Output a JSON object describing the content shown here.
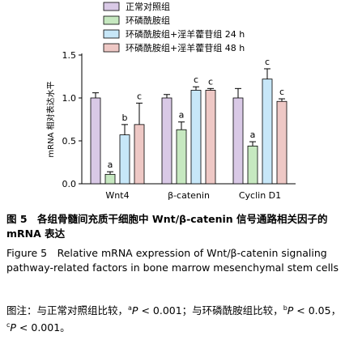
{
  "chart_data": {
    "type": "bar",
    "ylabel": "mRNA 相对表达水平",
    "ylim": [
      0,
      1.5
    ],
    "yticks": [
      "0.0",
      "0.5",
      "1.0",
      "1.5"
    ],
    "categories": [
      "Wnt4",
      "β-catenin",
      "Cyclin D1"
    ],
    "series": [
      {
        "name": "正常对照组",
        "color": "#d9c9e6",
        "values": [
          1.0,
          1.0,
          1.0
        ],
        "errors": [
          0.06,
          0.04,
          0.11
        ],
        "labels": [
          "",
          "",
          ""
        ]
      },
      {
        "name": "环磷酰胺组",
        "color": "#c6e8c0",
        "values": [
          0.11,
          0.63,
          0.44
        ],
        "errors": [
          0.03,
          0.09,
          0.05
        ],
        "labels": [
          "a",
          "a",
          "a"
        ]
      },
      {
        "name": "环磷酰胺组+淫羊藿苷组 24 h",
        "color": "#c7e7f8",
        "values": [
          0.57,
          1.09,
          1.22
        ],
        "errors": [
          0.12,
          0.04,
          0.12
        ],
        "labels": [
          "b",
          "c",
          "c"
        ]
      },
      {
        "name": "环磷酰胺组+淫羊藿苷组 48 h",
        "color": "#eec8c5",
        "values": [
          0.69,
          1.09,
          0.96
        ],
        "errors": [
          0.25,
          0.02,
          0.03
        ],
        "labels": [
          "c",
          "c",
          "c"
        ]
      }
    ]
  },
  "caption": {
    "cn_title": "图 5　各组骨髓间充质干细胞中 Wnt/β-catenin 信号通路相关因子的 mRNA 表达",
    "en_title": "Figure 5　Relative mRNA expression of Wnt/β-catenin signaling pathway-related factors in bone marrow mesenchymal stem cells",
    "note_prefix": "图注：与正常对照组比较，",
    "note_a_sup": "a",
    "note_a_p": "P",
    "note_a_text": " < 0.001；与环磷酰胺组比较，",
    "note_b_sup": "b",
    "note_b_p": "P",
    "note_b_text": " < 0.05，",
    "note_c_sup": "c",
    "note_c_p": "P",
    "note_c_text": " < 0.001。"
  }
}
